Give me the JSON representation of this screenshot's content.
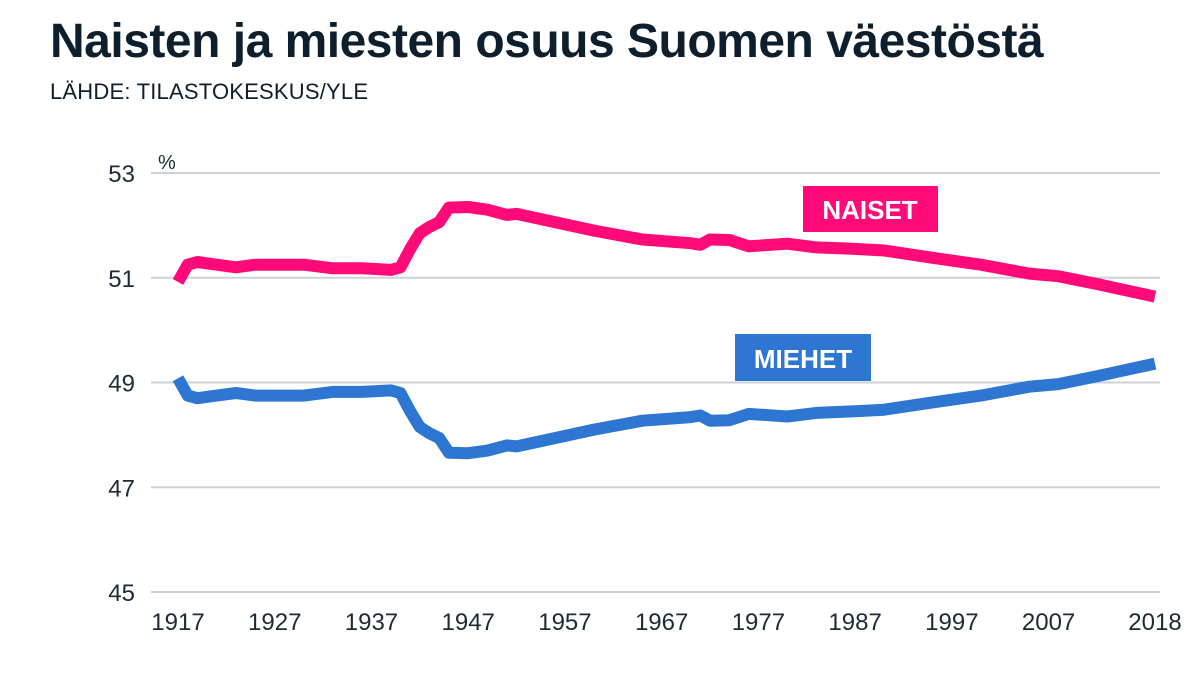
{
  "header": {
    "title": "Naisten ja miesten osuus Suomen väestöstä",
    "source": "LÄHDE: TILASTOKESKUS/YLE"
  },
  "colors": {
    "naiset": "#ff0a78",
    "miehet": "#2d76d2",
    "grid": "#cdd2d7",
    "text": "#0d1f2d"
  },
  "chart_data": {
    "type": "line",
    "title": "Naisten ja miesten osuus Suomen väestöstä",
    "subtitle": "LÄHDE: TILASTOKESKUS/YLE",
    "xlabel": "",
    "ylabel": "%",
    "ylim": [
      45,
      53
    ],
    "xlim": [
      1917,
      2018
    ],
    "yticks": [
      "45",
      "47",
      "49",
      "51",
      "53"
    ],
    "xticks": [
      "1917",
      "1927",
      "1937",
      "1947",
      "1957",
      "1967",
      "1977",
      "1987",
      "1997",
      "2007",
      "2018"
    ],
    "grid": true,
    "series": [
      {
        "name": "NAISET",
        "label": "NAISET",
        "x": [
          1917,
          1918,
          1919,
          1921,
          1923,
          1925,
          1930,
          1933,
          1936,
          1939,
          1940,
          1941,
          1942,
          1943,
          1944,
          1945,
          1947,
          1949,
          1951,
          1952,
          1955,
          1960,
          1965,
          1970,
          1971,
          1972,
          1974,
          1976,
          1980,
          1983,
          1987,
          1990,
          1995,
          2000,
          2005,
          2008,
          2012,
          2018
        ],
        "values": [
          50.92,
          51.25,
          51.3,
          51.25,
          51.2,
          51.25,
          51.25,
          51.18,
          51.18,
          51.15,
          51.2,
          51.55,
          51.85,
          51.97,
          52.06,
          52.34,
          52.35,
          52.3,
          52.2,
          52.22,
          52.1,
          51.9,
          51.73,
          51.66,
          51.63,
          51.73,
          51.72,
          51.6,
          51.65,
          51.58,
          51.55,
          51.52,
          51.38,
          51.25,
          51.08,
          51.03,
          50.88,
          50.64
        ]
      },
      {
        "name": "MIEHET",
        "label": "MIEHET",
        "x": [
          1917,
          1918,
          1919,
          1921,
          1923,
          1925,
          1930,
          1933,
          1936,
          1939,
          1940,
          1941,
          1942,
          1943,
          1944,
          1945,
          1947,
          1949,
          1951,
          1952,
          1955,
          1960,
          1965,
          1970,
          1971,
          1972,
          1974,
          1976,
          1980,
          1983,
          1987,
          1990,
          1995,
          2000,
          2005,
          2008,
          2012,
          2018
        ],
        "values": [
          49.08,
          48.75,
          48.7,
          48.75,
          48.8,
          48.75,
          48.75,
          48.82,
          48.82,
          48.85,
          48.8,
          48.45,
          48.15,
          48.03,
          47.94,
          47.66,
          47.65,
          47.7,
          47.8,
          47.78,
          47.9,
          48.1,
          48.27,
          48.34,
          48.37,
          48.27,
          48.28,
          48.4,
          48.35,
          48.42,
          48.45,
          48.48,
          48.62,
          48.75,
          48.92,
          48.97,
          49.12,
          49.36
        ]
      }
    ]
  }
}
